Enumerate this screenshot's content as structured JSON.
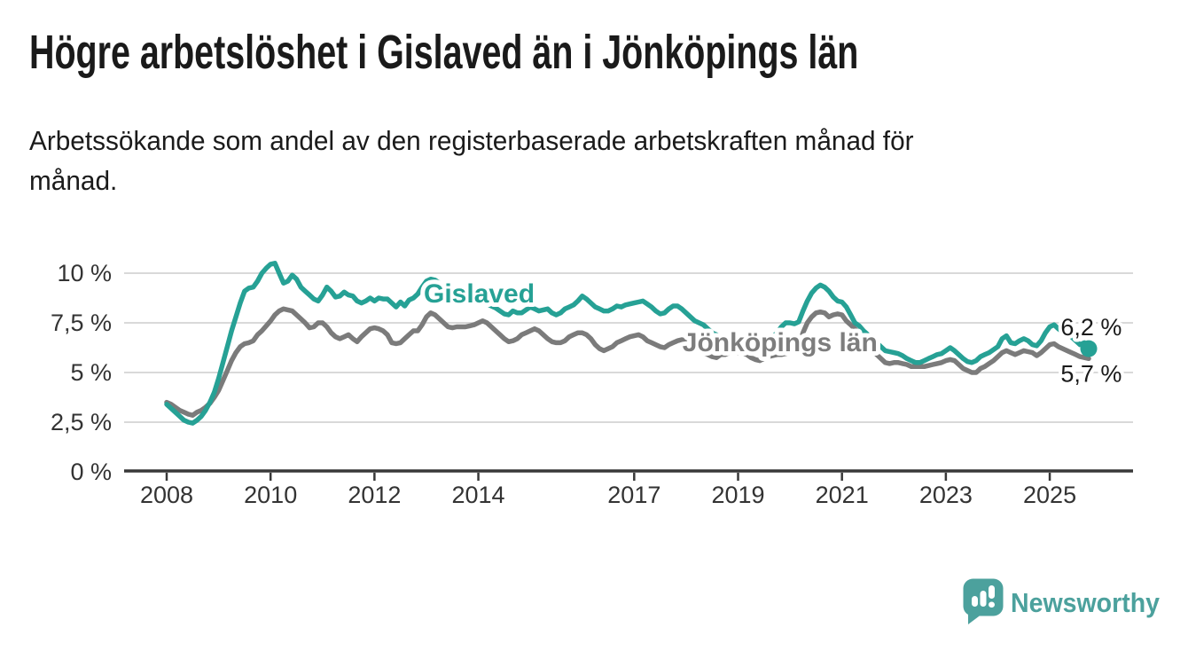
{
  "title": "Högre arbetslöshet i Gislaved än i Jönköpings län",
  "subtitle_line1": "Arbetssökande som andel av den registerbaserade arbetskraften månad för",
  "subtitle_line2": "månad.",
  "branding": {
    "logo_text": "Newsworthy",
    "logo_color": "#4ca19d",
    "logo_icon": "speech-bubble-bar-chart"
  },
  "colors": {
    "gislaved": "#26a195",
    "jonkopings_lan": "#7b7b7b",
    "axis": "#383838",
    "gridline": "#d9d9d9",
    "text": "#1a1a1a"
  },
  "chart_data": {
    "type": "line",
    "title": "Högre arbetslöshet i Gislaved än i Jönköpings län",
    "subtitle": "Arbetssökande som andel av den registerbaserade arbetskraften månad för månad.",
    "x_unit": "month",
    "x_start": "2008-01",
    "x_end": "2025-10",
    "y_unit": "%",
    "ylim": [
      0,
      10.8
    ],
    "grid": true,
    "legend": "inline-labels",
    "x_ticks": [
      {
        "year": 2008,
        "label": "2008"
      },
      {
        "year": 2010,
        "label": "2010"
      },
      {
        "year": 2012,
        "label": "2012"
      },
      {
        "year": 2014,
        "label": "2014"
      },
      {
        "year": 2017,
        "label": "2017"
      },
      {
        "year": 2019,
        "label": "2019"
      },
      {
        "year": 2021,
        "label": "2021"
      },
      {
        "year": 2023,
        "label": "2023"
      },
      {
        "year": 2025,
        "label": "2025"
      }
    ],
    "y_ticks": [
      {
        "value": 0,
        "label": "0 %"
      },
      {
        "value": 2.5,
        "label": "2,5 %"
      },
      {
        "value": 5,
        "label": "5 %"
      },
      {
        "value": 7.5,
        "label": "7,5 %"
      },
      {
        "value": 10,
        "label": "10 %"
      }
    ],
    "series": [
      {
        "name": "Gislaved",
        "color": "#26a195",
        "end_value_label": "6,2 %",
        "end_dot": true,
        "values": [
          3.4,
          3.2,
          3.0,
          2.8,
          2.6,
          2.5,
          2.45,
          2.6,
          2.8,
          3.1,
          3.5,
          4.0,
          4.7,
          5.5,
          6.3,
          7.1,
          7.8,
          8.5,
          9.1,
          9.25,
          9.3,
          9.6,
          10.0,
          10.25,
          10.45,
          10.5,
          10.0,
          9.5,
          9.6,
          9.9,
          9.7,
          9.3,
          9.1,
          8.9,
          8.7,
          8.6,
          8.9,
          9.3,
          9.1,
          8.8,
          8.85,
          9.05,
          8.9,
          8.85,
          8.6,
          8.5,
          8.6,
          8.75,
          8.6,
          8.75,
          8.7,
          8.7,
          8.5,
          8.3,
          8.55,
          8.35,
          8.65,
          8.75,
          8.95,
          9.3,
          9.6,
          9.7,
          9.65,
          9.5,
          9.35,
          9.2,
          9.1,
          9.0,
          8.9,
          8.85,
          8.8,
          8.75,
          8.65,
          8.55,
          8.45,
          8.35,
          8.25,
          8.1,
          7.95,
          7.9,
          8.1,
          8.0,
          8.0,
          8.15,
          8.3,
          8.2,
          8.1,
          8.15,
          8.2,
          8.0,
          7.9,
          8.0,
          8.2,
          8.3,
          8.4,
          8.6,
          8.85,
          8.7,
          8.5,
          8.3,
          8.2,
          8.1,
          8.1,
          8.2,
          8.35,
          8.3,
          8.4,
          8.45,
          8.5,
          8.55,
          8.6,
          8.45,
          8.3,
          8.1,
          7.95,
          8.0,
          8.2,
          8.35,
          8.35,
          8.2,
          8.0,
          7.8,
          7.6,
          7.5,
          7.4,
          7.2,
          7.0,
          6.9,
          6.8,
          6.7,
          6.6,
          6.55,
          6.5,
          6.4,
          6.35,
          6.3,
          6.4,
          6.5,
          6.5,
          6.6,
          6.8,
          7.0,
          7.3,
          7.5,
          7.5,
          7.45,
          7.55,
          8.1,
          8.6,
          9.0,
          9.25,
          9.4,
          9.3,
          9.1,
          8.8,
          8.6,
          8.55,
          8.3,
          7.9,
          7.5,
          7.35,
          7.1,
          6.9,
          6.7,
          6.5,
          6.3,
          6.1,
          6.05,
          6.0,
          5.95,
          5.85,
          5.7,
          5.6,
          5.5,
          5.5,
          5.6,
          5.7,
          5.8,
          5.9,
          5.95,
          6.1,
          6.25,
          6.1,
          5.9,
          5.7,
          5.55,
          5.5,
          5.6,
          5.8,
          5.9,
          6.0,
          6.15,
          6.3,
          6.7,
          6.85,
          6.5,
          6.45,
          6.6,
          6.7,
          6.6,
          6.4,
          6.35,
          6.6,
          7.0,
          7.3,
          7.4,
          7.2,
          7.05,
          6.9,
          6.8,
          6.6,
          6.4,
          6.5,
          6.2
        ]
      },
      {
        "name": "Jönköpings län",
        "color": "#7b7b7b",
        "end_value_label": "5,7 %",
        "end_dot": false,
        "values": [
          3.5,
          3.4,
          3.25,
          3.1,
          3.0,
          2.9,
          2.85,
          3.0,
          3.1,
          3.25,
          3.45,
          3.75,
          4.1,
          4.6,
          5.1,
          5.6,
          6.0,
          6.3,
          6.45,
          6.5,
          6.6,
          6.9,
          7.1,
          7.35,
          7.6,
          7.9,
          8.1,
          8.2,
          8.15,
          8.1,
          7.9,
          7.7,
          7.5,
          7.25,
          7.3,
          7.5,
          7.5,
          7.3,
          7.0,
          6.8,
          6.7,
          6.8,
          6.9,
          6.7,
          6.55,
          6.8,
          7.0,
          7.2,
          7.25,
          7.2,
          7.1,
          6.9,
          6.5,
          6.45,
          6.5,
          6.7,
          6.9,
          7.1,
          7.1,
          7.4,
          7.8,
          8.0,
          7.9,
          7.7,
          7.5,
          7.3,
          7.25,
          7.3,
          7.3,
          7.3,
          7.35,
          7.4,
          7.5,
          7.6,
          7.5,
          7.3,
          7.1,
          6.9,
          6.7,
          6.55,
          6.6,
          6.7,
          6.9,
          7.0,
          7.1,
          7.2,
          7.1,
          6.9,
          6.7,
          6.55,
          6.5,
          6.5,
          6.6,
          6.8,
          6.9,
          7.0,
          7.0,
          6.9,
          6.7,
          6.4,
          6.2,
          6.1,
          6.2,
          6.3,
          6.5,
          6.6,
          6.7,
          6.8,
          6.85,
          6.9,
          6.8,
          6.6,
          6.5,
          6.4,
          6.3,
          6.25,
          6.4,
          6.5,
          6.6,
          6.65,
          6.6,
          6.5,
          6.3,
          6.1,
          6.0,
          5.9,
          5.8,
          5.75,
          5.9,
          5.9,
          6.0,
          6.0,
          6.0,
          6.0,
          5.9,
          5.75,
          5.65,
          5.6,
          5.7,
          5.8,
          5.85,
          5.9,
          5.9,
          5.95,
          6.0,
          6.1,
          6.3,
          7.0,
          7.5,
          7.8,
          8.0,
          8.05,
          8.0,
          7.8,
          7.9,
          7.95,
          7.9,
          7.6,
          7.4,
          7.2,
          7.0,
          6.8,
          6.5,
          6.2,
          5.9,
          5.7,
          5.5,
          5.45,
          5.5,
          5.5,
          5.45,
          5.4,
          5.3,
          5.3,
          5.3,
          5.3,
          5.35,
          5.4,
          5.45,
          5.5,
          5.6,
          5.65,
          5.6,
          5.4,
          5.2,
          5.1,
          5.0,
          5.0,
          5.2,
          5.3,
          5.45,
          5.6,
          5.8,
          6.0,
          6.1,
          6.0,
          5.9,
          6.0,
          6.1,
          6.05,
          6.0,
          5.85,
          6.0,
          6.2,
          6.4,
          6.45,
          6.3,
          6.2,
          6.1,
          6.0,
          5.9,
          5.8,
          5.75,
          5.7
        ]
      }
    ],
    "annotations": [
      {
        "text": "Gislaved",
        "x": 2012.95,
        "y": 8.53,
        "color": "#26a195",
        "bold": true
      },
      {
        "text": "Jönköpings län",
        "x": 2017.93,
        "y": 6.07,
        "color": "#7d7d7d",
        "bold": true
      },
      {
        "text": "6,2 %",
        "x": 2025.21,
        "y": 6.88,
        "color": "#1a1a1a",
        "bold": false
      },
      {
        "text": "5,7 %",
        "x": 2025.21,
        "y": 4.54,
        "color": "#1a1a1a",
        "bold": false
      }
    ]
  }
}
